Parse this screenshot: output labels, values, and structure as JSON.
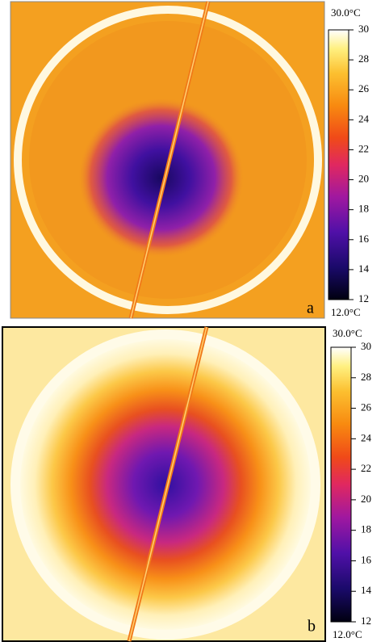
{
  "panels": [
    {
      "label": "a",
      "colorbar": {
        "max_label": "30.0°C",
        "min_label": "12.0°C",
        "lim": [
          12,
          30
        ],
        "ticks": [
          12,
          14,
          16,
          18,
          20,
          22,
          24,
          26,
          28,
          30
        ]
      }
    },
    {
      "label": "b",
      "colorbar": {
        "max_label": "30.0°C",
        "min_label": "12.0°C",
        "lim": [
          12,
          30
        ],
        "ticks": [
          12,
          14,
          16,
          18,
          20,
          22,
          24,
          26,
          28,
          30
        ]
      }
    }
  ]
}
